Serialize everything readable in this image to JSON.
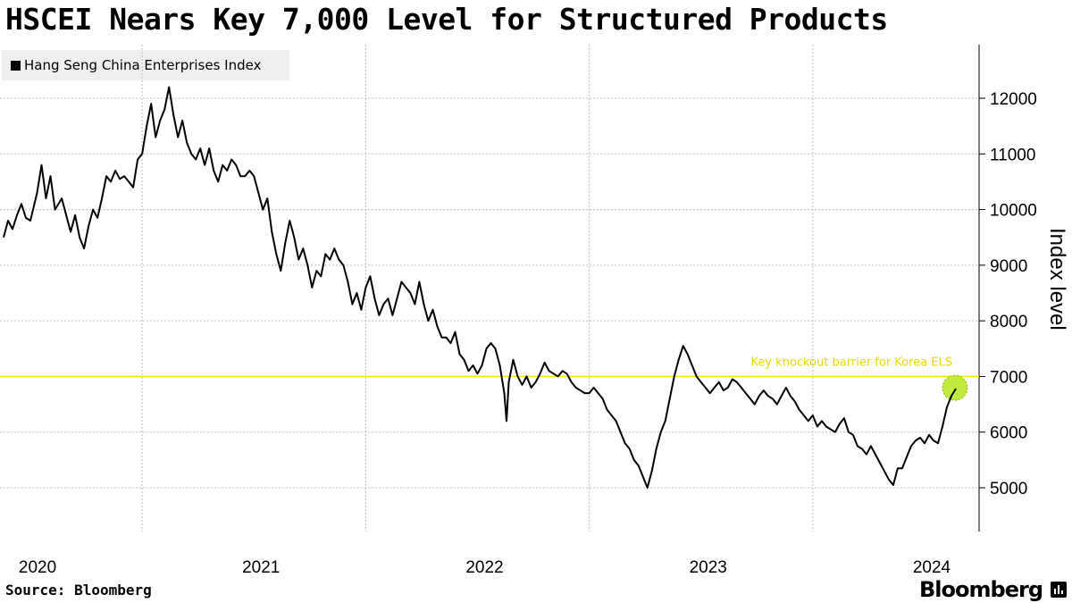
{
  "title": "HSCEI Nears Key 7,000 Level for Structured Products",
  "legend": {
    "label": "Hang Seng China Enterprises Index",
    "color": "#000000"
  },
  "footer": {
    "source": "Source: Bloomberg",
    "brand": "Bloomberg",
    "brand_icon": "bar-chart-icon"
  },
  "colors": {
    "line": "#000000",
    "barrier": "#f5e600",
    "barrier_label": "#e8d800",
    "marker": "#b5e61d",
    "grid": "#bdbdbd"
  },
  "chart_data": {
    "type": "line",
    "title": "HSCEI Nears Key 7,000 Level for Structured Products",
    "ylabel": "Index level",
    "xlabel": "",
    "ylim": [
      4400,
      12900
    ],
    "xlim": [
      2019.9,
      2024.3
    ],
    "yticks": [
      5000,
      6000,
      7000,
      8000,
      9000,
      10000,
      11000,
      12000
    ],
    "xticks": [
      {
        "label": "2020",
        "value": 2020.0
      },
      {
        "label": "2021",
        "value": 2021.0
      },
      {
        "label": "2022",
        "value": 2022.0
      },
      {
        "label": "2023",
        "value": 2023.0
      },
      {
        "label": "2024",
        "value": 2024.0
      }
    ],
    "year_gridlines": [
      2020.5,
      2021.5,
      2022.5,
      2023.5
    ],
    "grid": true,
    "legend_position": "top-left",
    "annotations": [
      {
        "type": "hline",
        "y": 7000,
        "label": "Key knockout barrier for Korea ELS"
      },
      {
        "type": "circle",
        "x": 2024.14,
        "y": 6780
      }
    ],
    "series": [
      {
        "name": "Hang Seng China Enterprises Index",
        "points": [
          [
            2019.88,
            9500
          ],
          [
            2019.9,
            9800
          ],
          [
            2019.92,
            9650
          ],
          [
            2019.94,
            9900
          ],
          [
            2019.96,
            10100
          ],
          [
            2019.98,
            9850
          ],
          [
            2020.0,
            9800
          ],
          [
            2020.03,
            10300
          ],
          [
            2020.05,
            10800
          ],
          [
            2020.07,
            10200
          ],
          [
            2020.09,
            10600
          ],
          [
            2020.11,
            10000
          ],
          [
            2020.14,
            10200
          ],
          [
            2020.16,
            9900
          ],
          [
            2020.18,
            9600
          ],
          [
            2020.2,
            9900
          ],
          [
            2020.22,
            9500
          ],
          [
            2020.24,
            9300
          ],
          [
            2020.26,
            9700
          ],
          [
            2020.28,
            10000
          ],
          [
            2020.3,
            9850
          ],
          [
            2020.32,
            10200
          ],
          [
            2020.34,
            10600
          ],
          [
            2020.36,
            10500
          ],
          [
            2020.38,
            10700
          ],
          [
            2020.4,
            10550
          ],
          [
            2020.42,
            10600
          ],
          [
            2020.44,
            10500
          ],
          [
            2020.46,
            10400
          ],
          [
            2020.48,
            10900
          ],
          [
            2020.5,
            11000
          ],
          [
            2020.52,
            11500
          ],
          [
            2020.54,
            11900
          ],
          [
            2020.56,
            11300
          ],
          [
            2020.58,
            11600
          ],
          [
            2020.6,
            11800
          ],
          [
            2020.62,
            12200
          ],
          [
            2020.64,
            11700
          ],
          [
            2020.66,
            11300
          ],
          [
            2020.68,
            11600
          ],
          [
            2020.7,
            11200
          ],
          [
            2020.72,
            11000
          ],
          [
            2020.74,
            10900
          ],
          [
            2020.76,
            11100
          ],
          [
            2020.78,
            10800
          ],
          [
            2020.8,
            11100
          ],
          [
            2020.82,
            10700
          ],
          [
            2020.84,
            10500
          ],
          [
            2020.86,
            10800
          ],
          [
            2020.88,
            10700
          ],
          [
            2020.9,
            10900
          ],
          [
            2020.92,
            10800
          ],
          [
            2020.94,
            10600
          ],
          [
            2020.96,
            10600
          ],
          [
            2020.98,
            10700
          ],
          [
            2021.0,
            10600
          ],
          [
            2021.02,
            10300
          ],
          [
            2021.04,
            10000
          ],
          [
            2021.06,
            10200
          ],
          [
            2021.08,
            9600
          ],
          [
            2021.1,
            9200
          ],
          [
            2021.12,
            8900
          ],
          [
            2021.14,
            9400
          ],
          [
            2021.16,
            9800
          ],
          [
            2021.18,
            9500
          ],
          [
            2021.2,
            9100
          ],
          [
            2021.22,
            9300
          ],
          [
            2021.24,
            9000
          ],
          [
            2021.26,
            8600
          ],
          [
            2021.28,
            8900
          ],
          [
            2021.3,
            8800
          ],
          [
            2021.32,
            9200
          ],
          [
            2021.34,
            9100
          ],
          [
            2021.36,
            9300
          ],
          [
            2021.38,
            9100
          ],
          [
            2021.4,
            9000
          ],
          [
            2021.42,
            8700
          ],
          [
            2021.44,
            8300
          ],
          [
            2021.46,
            8500
          ],
          [
            2021.48,
            8200
          ],
          [
            2021.5,
            8600
          ],
          [
            2021.52,
            8800
          ],
          [
            2021.54,
            8400
          ],
          [
            2021.56,
            8100
          ],
          [
            2021.58,
            8300
          ],
          [
            2021.6,
            8400
          ],
          [
            2021.62,
            8100
          ],
          [
            2021.64,
            8400
          ],
          [
            2021.66,
            8700
          ],
          [
            2021.68,
            8600
          ],
          [
            2021.7,
            8500
          ],
          [
            2021.72,
            8300
          ],
          [
            2021.74,
            8700
          ],
          [
            2021.76,
            8300
          ],
          [
            2021.78,
            8000
          ],
          [
            2021.8,
            8200
          ],
          [
            2021.82,
            7900
          ],
          [
            2021.84,
            7700
          ],
          [
            2021.86,
            7700
          ],
          [
            2021.88,
            7600
          ],
          [
            2021.9,
            7800
          ],
          [
            2021.92,
            7400
          ],
          [
            2021.94,
            7300
          ],
          [
            2021.96,
            7100
          ],
          [
            2021.98,
            7200
          ],
          [
            2022.0,
            7050
          ],
          [
            2022.02,
            7200
          ],
          [
            2022.04,
            7500
          ],
          [
            2022.06,
            7600
          ],
          [
            2022.08,
            7500
          ],
          [
            2022.1,
            7200
          ],
          [
            2022.12,
            6700
          ],
          [
            2022.13,
            6200
          ],
          [
            2022.14,
            6900
          ],
          [
            2022.16,
            7300
          ],
          [
            2022.18,
            7000
          ],
          [
            2022.2,
            6850
          ],
          [
            2022.22,
            7000
          ],
          [
            2022.24,
            6800
          ],
          [
            2022.26,
            6900
          ],
          [
            2022.28,
            7050
          ],
          [
            2022.3,
            7250
          ],
          [
            2022.32,
            7100
          ],
          [
            2022.34,
            7050
          ],
          [
            2022.36,
            7000
          ],
          [
            2022.38,
            7100
          ],
          [
            2022.4,
            7050
          ],
          [
            2022.42,
            6900
          ],
          [
            2022.44,
            6800
          ],
          [
            2022.46,
            6750
          ],
          [
            2022.48,
            6700
          ],
          [
            2022.5,
            6700
          ],
          [
            2022.52,
            6800
          ],
          [
            2022.54,
            6700
          ],
          [
            2022.56,
            6600
          ],
          [
            2022.58,
            6400
          ],
          [
            2022.6,
            6300
          ],
          [
            2022.62,
            6200
          ],
          [
            2022.64,
            6000
          ],
          [
            2022.66,
            5800
          ],
          [
            2022.68,
            5700
          ],
          [
            2022.7,
            5500
          ],
          [
            2022.72,
            5400
          ],
          [
            2022.74,
            5200
          ],
          [
            2022.76,
            5000
          ],
          [
            2022.78,
            5300
          ],
          [
            2022.8,
            5700
          ],
          [
            2022.82,
            6000
          ],
          [
            2022.84,
            6200
          ],
          [
            2022.86,
            6600
          ],
          [
            2022.88,
            7000
          ],
          [
            2022.9,
            7300
          ],
          [
            2022.92,
            7550
          ],
          [
            2022.94,
            7400
          ],
          [
            2022.96,
            7200
          ],
          [
            2022.98,
            7000
          ],
          [
            2023.0,
            6900
          ],
          [
            2023.02,
            6800
          ],
          [
            2023.04,
            6700
          ],
          [
            2023.06,
            6800
          ],
          [
            2023.08,
            6900
          ],
          [
            2023.1,
            6750
          ],
          [
            2023.12,
            6800
          ],
          [
            2023.14,
            6950
          ],
          [
            2023.16,
            6900
          ],
          [
            2023.18,
            6800
          ],
          [
            2023.2,
            6700
          ],
          [
            2023.22,
            6600
          ],
          [
            2023.24,
            6500
          ],
          [
            2023.26,
            6650
          ],
          [
            2023.28,
            6750
          ],
          [
            2023.3,
            6650
          ],
          [
            2023.32,
            6600
          ],
          [
            2023.34,
            6500
          ],
          [
            2023.36,
            6650
          ],
          [
            2023.38,
            6800
          ],
          [
            2023.4,
            6650
          ],
          [
            2023.42,
            6550
          ],
          [
            2023.44,
            6400
          ],
          [
            2023.46,
            6300
          ],
          [
            2023.48,
            6200
          ],
          [
            2023.5,
            6300
          ],
          [
            2023.52,
            6100
          ],
          [
            2023.54,
            6200
          ],
          [
            2023.56,
            6100
          ],
          [
            2023.58,
            6050
          ],
          [
            2023.6,
            6000
          ],
          [
            2023.62,
            6150
          ],
          [
            2023.64,
            6250
          ],
          [
            2023.66,
            6000
          ],
          [
            2023.68,
            5950
          ],
          [
            2023.7,
            5750
          ],
          [
            2023.72,
            5700
          ],
          [
            2023.74,
            5600
          ],
          [
            2023.76,
            5750
          ],
          [
            2023.78,
            5600
          ],
          [
            2023.8,
            5450
          ],
          [
            2023.82,
            5300
          ],
          [
            2023.84,
            5150
          ],
          [
            2023.86,
            5050
          ],
          [
            2023.88,
            5350
          ],
          [
            2023.9,
            5350
          ],
          [
            2023.92,
            5550
          ],
          [
            2023.94,
            5750
          ],
          [
            2023.96,
            5850
          ],
          [
            2023.98,
            5900
          ],
          [
            2024.0,
            5800
          ],
          [
            2024.02,
            5950
          ],
          [
            2024.04,
            5850
          ],
          [
            2024.06,
            5800
          ],
          [
            2024.08,
            6100
          ],
          [
            2024.1,
            6450
          ],
          [
            2024.12,
            6650
          ],
          [
            2024.14,
            6780
          ]
        ]
      }
    ]
  }
}
